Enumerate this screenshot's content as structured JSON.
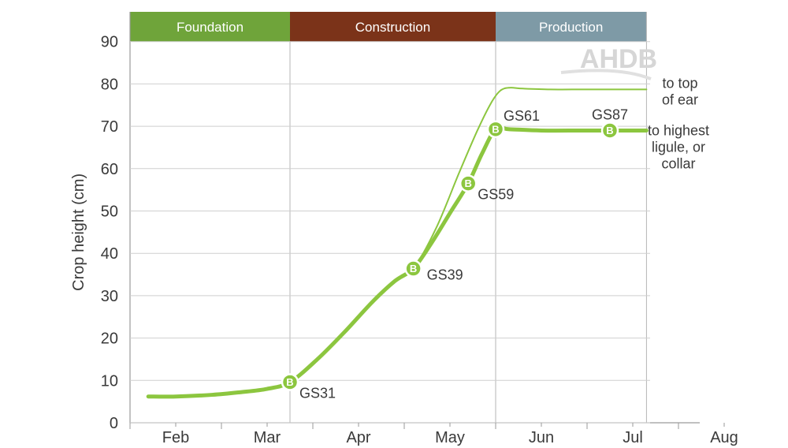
{
  "chart_data": {
    "type": "line",
    "xlabel": "",
    "ylabel": "Crop height (cm)",
    "ylim": [
      0,
      90
    ],
    "yticks": [
      0,
      10,
      20,
      30,
      40,
      50,
      60,
      70,
      80,
      90
    ],
    "xlim": [
      0,
      6.3
    ],
    "x_ticks": [
      {
        "label": "Feb",
        "x": 0.5
      },
      {
        "label": "Mar",
        "x": 1.5
      },
      {
        "label": "Apr",
        "x": 2.5
      },
      {
        "label": "May",
        "x": 3.5
      },
      {
        "label": "Jun",
        "x": 4.5
      },
      {
        "label": "Jul",
        "x": 5.5
      },
      {
        "label": "Aug",
        "x": 6.5
      }
    ],
    "phases": [
      {
        "label": "Foundation",
        "start": 0,
        "end": 1.75,
        "color": "#6fa43a"
      },
      {
        "label": "Construction",
        "start": 1.75,
        "end": 4.0,
        "color": "#7b3319"
      },
      {
        "label": "Production",
        "start": 4.0,
        "end": 5.65,
        "color": "#7e9aa6"
      }
    ],
    "series": [
      {
        "name": "to highest ligule, or collar",
        "label_lines": [
          "to highest",
          "ligule, or",
          "collar"
        ],
        "x": [
          0.2,
          0.5,
          0.9,
          1.2,
          1.5,
          1.75,
          2.05,
          2.35,
          2.65,
          2.9,
          3.1,
          3.3,
          3.5,
          3.7,
          3.85,
          4.0,
          4.15,
          4.5,
          5.0,
          5.65
        ],
        "values": [
          6.2,
          6.2,
          6.6,
          7.2,
          8.0,
          9.6,
          15,
          21.5,
          28.5,
          33.5,
          36.4,
          42.5,
          49.5,
          56.5,
          63.5,
          69.3,
          69.3,
          69.0,
          69.0,
          69.0
        ]
      },
      {
        "name": "to top of ear",
        "label_lines": [
          "to top",
          "of ear"
        ],
        "x": [
          2.9,
          3.1,
          3.35,
          3.6,
          3.8,
          3.95,
          4.05,
          4.15,
          4.3,
          4.6,
          5.0,
          5.65
        ],
        "values": [
          33.5,
          36.4,
          46,
          59,
          69,
          75.5,
          78.4,
          79.1,
          78.9,
          78.7,
          78.7,
          78.7
        ]
      }
    ],
    "growth_stages": [
      {
        "label": "GS31",
        "x": 1.75,
        "y": 9.6,
        "label_pos": "below-right"
      },
      {
        "label": "GS39",
        "x": 3.1,
        "y": 36.4,
        "label_pos": "right"
      },
      {
        "label": "GS59",
        "x": 3.7,
        "y": 56.5,
        "label_pos": "below-right"
      },
      {
        "label": "GS61",
        "x": 4.0,
        "y": 69.3,
        "label_pos": "above-right"
      },
      {
        "label": "GS87",
        "x": 5.25,
        "y": 69.0,
        "label_pos": "above"
      }
    ],
    "marker_letter": "B",
    "watermark": "AHDB",
    "colors": {
      "line": "#8cc63f",
      "marker": "#8cc63f",
      "axis": "#9a9a9a",
      "divider": "#b5b5b5"
    }
  }
}
